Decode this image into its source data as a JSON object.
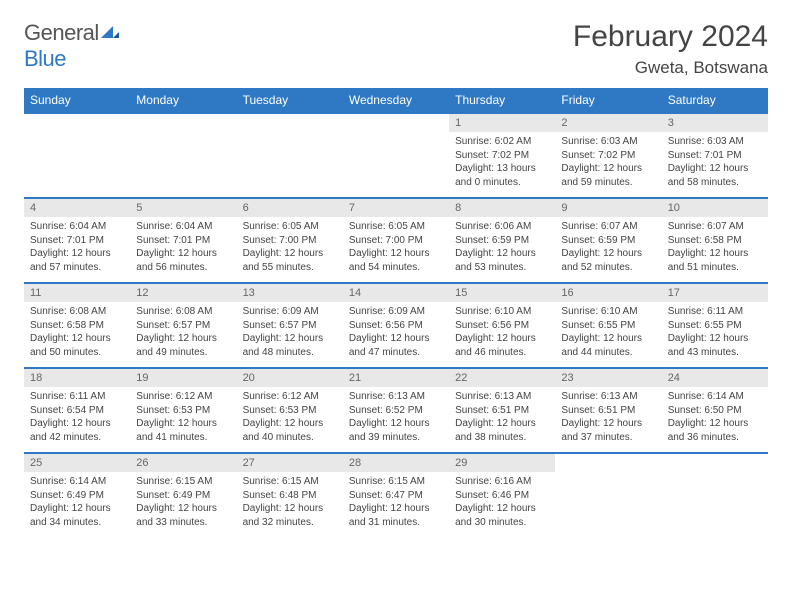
{
  "logo": {
    "word1": "General",
    "word2": "Blue"
  },
  "title": "February 2024",
  "subtitle": "Gweta, Botswana",
  "colors": {
    "header_bg": "#2f78c4",
    "header_fg": "#ffffff",
    "daynum_bg": "#e8e8e8",
    "rule": "#2f78c4"
  },
  "weekdays": [
    "Sunday",
    "Monday",
    "Tuesday",
    "Wednesday",
    "Thursday",
    "Friday",
    "Saturday"
  ],
  "weeks": [
    [
      null,
      null,
      null,
      null,
      {
        "n": "1",
        "sr": "Sunrise: 6:02 AM",
        "ss": "Sunset: 7:02 PM",
        "d1": "Daylight: 13 hours",
        "d2": "and 0 minutes."
      },
      {
        "n": "2",
        "sr": "Sunrise: 6:03 AM",
        "ss": "Sunset: 7:02 PM",
        "d1": "Daylight: 12 hours",
        "d2": "and 59 minutes."
      },
      {
        "n": "3",
        "sr": "Sunrise: 6:03 AM",
        "ss": "Sunset: 7:01 PM",
        "d1": "Daylight: 12 hours",
        "d2": "and 58 minutes."
      }
    ],
    [
      {
        "n": "4",
        "sr": "Sunrise: 6:04 AM",
        "ss": "Sunset: 7:01 PM",
        "d1": "Daylight: 12 hours",
        "d2": "and 57 minutes."
      },
      {
        "n": "5",
        "sr": "Sunrise: 6:04 AM",
        "ss": "Sunset: 7:01 PM",
        "d1": "Daylight: 12 hours",
        "d2": "and 56 minutes."
      },
      {
        "n": "6",
        "sr": "Sunrise: 6:05 AM",
        "ss": "Sunset: 7:00 PM",
        "d1": "Daylight: 12 hours",
        "d2": "and 55 minutes."
      },
      {
        "n": "7",
        "sr": "Sunrise: 6:05 AM",
        "ss": "Sunset: 7:00 PM",
        "d1": "Daylight: 12 hours",
        "d2": "and 54 minutes."
      },
      {
        "n": "8",
        "sr": "Sunrise: 6:06 AM",
        "ss": "Sunset: 6:59 PM",
        "d1": "Daylight: 12 hours",
        "d2": "and 53 minutes."
      },
      {
        "n": "9",
        "sr": "Sunrise: 6:07 AM",
        "ss": "Sunset: 6:59 PM",
        "d1": "Daylight: 12 hours",
        "d2": "and 52 minutes."
      },
      {
        "n": "10",
        "sr": "Sunrise: 6:07 AM",
        "ss": "Sunset: 6:58 PM",
        "d1": "Daylight: 12 hours",
        "d2": "and 51 minutes."
      }
    ],
    [
      {
        "n": "11",
        "sr": "Sunrise: 6:08 AM",
        "ss": "Sunset: 6:58 PM",
        "d1": "Daylight: 12 hours",
        "d2": "and 50 minutes."
      },
      {
        "n": "12",
        "sr": "Sunrise: 6:08 AM",
        "ss": "Sunset: 6:57 PM",
        "d1": "Daylight: 12 hours",
        "d2": "and 49 minutes."
      },
      {
        "n": "13",
        "sr": "Sunrise: 6:09 AM",
        "ss": "Sunset: 6:57 PM",
        "d1": "Daylight: 12 hours",
        "d2": "and 48 minutes."
      },
      {
        "n": "14",
        "sr": "Sunrise: 6:09 AM",
        "ss": "Sunset: 6:56 PM",
        "d1": "Daylight: 12 hours",
        "d2": "and 47 minutes."
      },
      {
        "n": "15",
        "sr": "Sunrise: 6:10 AM",
        "ss": "Sunset: 6:56 PM",
        "d1": "Daylight: 12 hours",
        "d2": "and 46 minutes."
      },
      {
        "n": "16",
        "sr": "Sunrise: 6:10 AM",
        "ss": "Sunset: 6:55 PM",
        "d1": "Daylight: 12 hours",
        "d2": "and 44 minutes."
      },
      {
        "n": "17",
        "sr": "Sunrise: 6:11 AM",
        "ss": "Sunset: 6:55 PM",
        "d1": "Daylight: 12 hours",
        "d2": "and 43 minutes."
      }
    ],
    [
      {
        "n": "18",
        "sr": "Sunrise: 6:11 AM",
        "ss": "Sunset: 6:54 PM",
        "d1": "Daylight: 12 hours",
        "d2": "and 42 minutes."
      },
      {
        "n": "19",
        "sr": "Sunrise: 6:12 AM",
        "ss": "Sunset: 6:53 PM",
        "d1": "Daylight: 12 hours",
        "d2": "and 41 minutes."
      },
      {
        "n": "20",
        "sr": "Sunrise: 6:12 AM",
        "ss": "Sunset: 6:53 PM",
        "d1": "Daylight: 12 hours",
        "d2": "and 40 minutes."
      },
      {
        "n": "21",
        "sr": "Sunrise: 6:13 AM",
        "ss": "Sunset: 6:52 PM",
        "d1": "Daylight: 12 hours",
        "d2": "and 39 minutes."
      },
      {
        "n": "22",
        "sr": "Sunrise: 6:13 AM",
        "ss": "Sunset: 6:51 PM",
        "d1": "Daylight: 12 hours",
        "d2": "and 38 minutes."
      },
      {
        "n": "23",
        "sr": "Sunrise: 6:13 AM",
        "ss": "Sunset: 6:51 PM",
        "d1": "Daylight: 12 hours",
        "d2": "and 37 minutes."
      },
      {
        "n": "24",
        "sr": "Sunrise: 6:14 AM",
        "ss": "Sunset: 6:50 PM",
        "d1": "Daylight: 12 hours",
        "d2": "and 36 minutes."
      }
    ],
    [
      {
        "n": "25",
        "sr": "Sunrise: 6:14 AM",
        "ss": "Sunset: 6:49 PM",
        "d1": "Daylight: 12 hours",
        "d2": "and 34 minutes."
      },
      {
        "n": "26",
        "sr": "Sunrise: 6:15 AM",
        "ss": "Sunset: 6:49 PM",
        "d1": "Daylight: 12 hours",
        "d2": "and 33 minutes."
      },
      {
        "n": "27",
        "sr": "Sunrise: 6:15 AM",
        "ss": "Sunset: 6:48 PM",
        "d1": "Daylight: 12 hours",
        "d2": "and 32 minutes."
      },
      {
        "n": "28",
        "sr": "Sunrise: 6:15 AM",
        "ss": "Sunset: 6:47 PM",
        "d1": "Daylight: 12 hours",
        "d2": "and 31 minutes."
      },
      {
        "n": "29",
        "sr": "Sunrise: 6:16 AM",
        "ss": "Sunset: 6:46 PM",
        "d1": "Daylight: 12 hours",
        "d2": "and 30 minutes."
      },
      null,
      null
    ]
  ]
}
